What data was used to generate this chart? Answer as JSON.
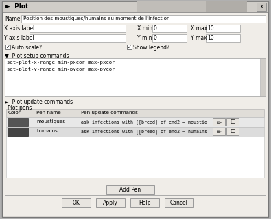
{
  "title": "Plot",
  "title_icon": "►",
  "name_label": "Name",
  "name_value": "Position des moustiques/humains au moment de l'infection",
  "x_axis_label": "X axis label",
  "y_axis_label": "Y axis label",
  "x_min_label": "X min",
  "x_min_value": "0",
  "x_max_label": "X max",
  "x_max_value": "10",
  "y_min_label": "Y min",
  "y_min_value": "0",
  "y_max_label": "Y max",
  "y_max_value": "10",
  "auto_scale": "Auto scale?",
  "show_legend": "Show legend?",
  "plot_setup_label": "Plot setup commands",
  "plot_setup_commands": "set-plot-x-range min-pxcor max-pxcor\nset-plot-y-range min-pycor max-pycor",
  "plot_update_label": "Plot update commands",
  "plot_pens_label": "Plot pens",
  "pen_color_header": "Color",
  "pen_name_header": "Pen name",
  "pen_update_header": "Pen update commands",
  "pen1_name": "moustiques",
  "pen1_color": "#555555",
  "pen1_cmd": "ask infections with [[breed] of end2 = moustiq",
  "pen2_name": "humains",
  "pen2_color": "#444444",
  "pen2_cmd": "ask infections with [[breed] of end2 = humains",
  "add_pen_btn": "Add Pen",
  "ok_btn": "OK",
  "apply_btn": "Apply",
  "help_btn": "Help",
  "cancel_btn": "Cancel",
  "outer_bg": "#b0b0b0",
  "dialog_bg": "#f0ede8",
  "titlebar_bg": "#d0cdc8",
  "titlebar_gradient_end": "#a0a0a0",
  "input_bg": "#ffffff",
  "code_bg": "#ffffff",
  "table_header_bg": "#e0ddd8",
  "row1_bg": "#e8e8e8",
  "row2_bg": "#dcdcdc",
  "btn_bg": "#e8e5e0",
  "scrollbar_bg": "#d0cdc8",
  "border_dark": "#888888",
  "border_light": "#cccccc",
  "text_color": "#000000",
  "close_btn_bg": "#c8c5c0"
}
